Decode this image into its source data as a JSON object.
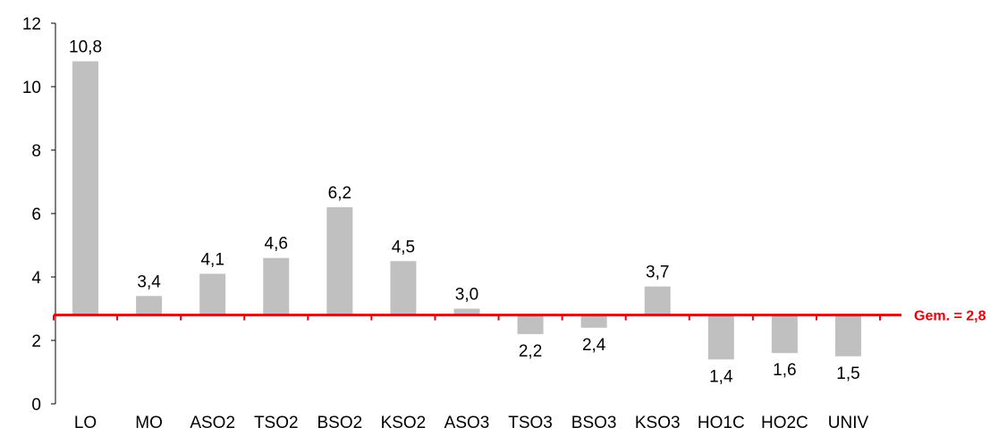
{
  "chart_data": {
    "type": "bar",
    "categories": [
      "LO",
      "MO",
      "ASO2",
      "TSO2",
      "BSO2",
      "KSO2",
      "ASO3",
      "TSO3",
      "BSO3",
      "KSO3",
      "HO1C",
      "HO2C",
      "UNIV"
    ],
    "values": [
      10.8,
      3.4,
      4.1,
      4.6,
      6.2,
      4.5,
      3.0,
      2.2,
      2.4,
      3.7,
      1.4,
      1.6,
      1.5
    ],
    "data_labels": [
      "10,8",
      "3,4",
      "4,1",
      "4,6",
      "6,2",
      "4,5",
      "3,0",
      "2,2",
      "2,4",
      "3,7",
      "1,4",
      "1,6",
      "1,5"
    ],
    "baseline": 2.8,
    "baseline_label": "Gem. = 2,8",
    "ylim": [
      0,
      12
    ],
    "yticks": [
      0,
      2,
      4,
      6,
      8,
      10,
      12
    ],
    "title": "",
    "xlabel": "",
    "ylabel": "",
    "grid": false,
    "colors": {
      "bar": "#c0c0c0",
      "baseline": "#e8000d",
      "axis": "#000000"
    }
  }
}
